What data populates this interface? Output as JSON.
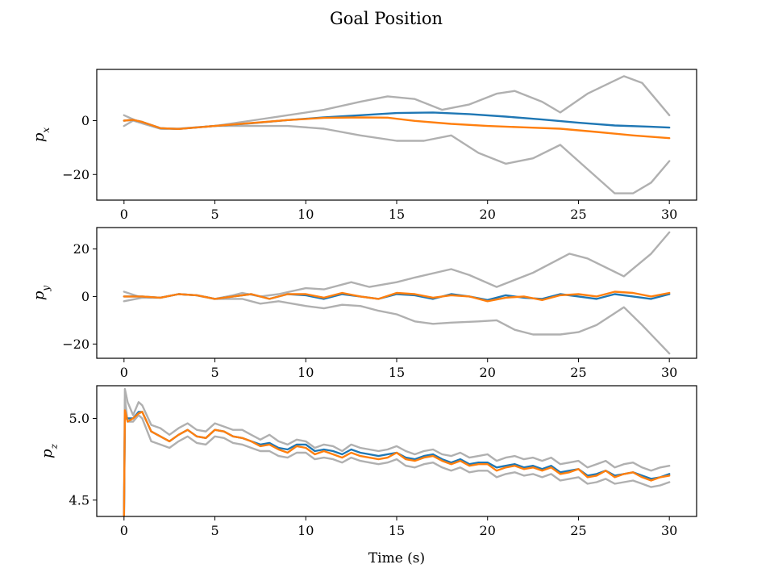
{
  "title": "Goal Position",
  "xlabel": "Time (s)",
  "colors": {
    "mean": "#1f77b4",
    "estimate": "#ff7f0e",
    "bounds": "#b0b0b0",
    "overlap": "#6b3a10"
  },
  "chart_data": [
    {
      "type": "line",
      "ylabel_main": "p",
      "ylabel_sub": "x",
      "xlim": [
        -1.5,
        31.5
      ],
      "ylim": [
        -29.5,
        19
      ],
      "xticks": [
        0,
        5,
        10,
        15,
        20,
        25,
        30
      ],
      "yticks": [
        0,
        -20
      ],
      "ytick_labels": [
        "0",
        "−20"
      ],
      "series": [
        {
          "role": "upper",
          "color": "#b0b0b0",
          "x": [
            0,
            0.5,
            1,
            2,
            3,
            5,
            7,
            9,
            11,
            13,
            14.5,
            16,
            17.5,
            19,
            20.5,
            21.5,
            23,
            24,
            25.5,
            27.5,
            28.5,
            30
          ],
          "y": [
            2,
            0.5,
            -1,
            -3,
            -3,
            -2,
            0,
            2,
            4,
            7,
            9,
            8,
            4,
            6,
            10,
            11,
            7,
            3,
            10,
            16.5,
            14,
            2
          ]
        },
        {
          "role": "lower",
          "color": "#b0b0b0",
          "x": [
            0,
            0.5,
            1,
            2,
            3,
            5,
            7,
            9,
            11,
            13,
            15,
            16.5,
            18,
            19.5,
            21,
            22.5,
            24,
            25.5,
            27,
            28,
            29,
            30
          ],
          "y": [
            -2,
            0,
            -1,
            -3,
            -3,
            -2,
            -2,
            -2,
            -3,
            -5.5,
            -7.5,
            -7.5,
            -5.5,
            -12,
            -16,
            -14,
            -9,
            -18,
            -27,
            -27,
            -23,
            -15
          ]
        },
        {
          "role": "mean",
          "color": "#1f77b4",
          "x": [
            0,
            0.5,
            1,
            2,
            3,
            5,
            7,
            9,
            11,
            13,
            15,
            17,
            19,
            21,
            23,
            25,
            27,
            29,
            30
          ],
          "y": [
            0,
            0.3,
            -0.5,
            -2.8,
            -3.1,
            -2,
            -1,
            0.2,
            1.2,
            2,
            2.8,
            3,
            2.4,
            1.5,
            0.4,
            -0.8,
            -1.8,
            -2.3,
            -2.6
          ]
        },
        {
          "role": "estimate",
          "color": "#ff7f0e",
          "x": [
            0,
            0.5,
            1,
            2,
            3,
            5,
            7,
            9,
            11,
            13,
            14.5,
            16,
            18,
            20,
            22,
            24,
            26,
            28,
            30
          ],
          "y": [
            0,
            0.3,
            -0.5,
            -2.8,
            -3.1,
            -2,
            -0.9,
            0.2,
            1,
            1.2,
            1.1,
            -0.1,
            -1.2,
            -2,
            -2.5,
            -3,
            -4.2,
            -5.5,
            -6.5
          ]
        }
      ]
    },
    {
      "type": "line",
      "ylabel_main": "p",
      "ylabel_sub": "y",
      "xlim": [
        -1.5,
        31.5
      ],
      "ylim": [
        -26,
        29
      ],
      "xticks": [
        0,
        5,
        10,
        15,
        20,
        25,
        30
      ],
      "yticks": [
        20,
        0,
        -20
      ],
      "ytick_labels": [
        "20",
        "0",
        "−20"
      ],
      "series": [
        {
          "role": "upper",
          "color": "#b0b0b0",
          "x": [
            0,
            1,
            2,
            3,
            4,
            5,
            6,
            6.5,
            7.5,
            8.5,
            10,
            11,
            12.5,
            13.5,
            15,
            16,
            18,
            19,
            20.5,
            22.5,
            24.5,
            25.5,
            27.5,
            29,
            30
          ],
          "y": [
            2,
            -0.5,
            -0.5,
            1,
            0.5,
            -1,
            0.5,
            1.5,
            0,
            1,
            3.5,
            3,
            6,
            4,
            6,
            8,
            11.5,
            9,
            4,
            10,
            18,
            16,
            8.5,
            18,
            27
          ]
        },
        {
          "role": "lower",
          "color": "#b0b0b0",
          "x": [
            0,
            1,
            2,
            3,
            4,
            5,
            6.5,
            7.5,
            8.5,
            10,
            11,
            12,
            13,
            14,
            15,
            16,
            17,
            18,
            19.5,
            20.5,
            21.5,
            22.5,
            24,
            25,
            26,
            27.5,
            28.5,
            30
          ],
          "y": [
            -2,
            -0.5,
            -0.5,
            1,
            0.5,
            -1,
            -1,
            -3,
            -2,
            -4,
            -5,
            -3.5,
            -4,
            -6,
            -7.5,
            -10.5,
            -11.5,
            -11,
            -10.5,
            -10,
            -14,
            -16,
            -16,
            -15,
            -12,
            -4.5,
            -12,
            -24
          ]
        },
        {
          "role": "mean",
          "color": "#1f77b4",
          "x": [
            0,
            1,
            2,
            3,
            4,
            5,
            6,
            7,
            8,
            9,
            10,
            11,
            12,
            13,
            14,
            15,
            16,
            17,
            18,
            19,
            20,
            21,
            22,
            23,
            24,
            25,
            26,
            27,
            28,
            29,
            30
          ],
          "y": [
            0,
            0,
            -0.5,
            1,
            0.5,
            -1,
            0,
            1,
            -1,
            1,
            0.5,
            -1,
            1,
            0,
            -1,
            1,
            0.5,
            -1,
            1,
            0,
            -1.5,
            0.5,
            -0.5,
            -1,
            1,
            0,
            -1,
            1,
            0,
            -1,
            1
          ]
        },
        {
          "role": "estimate",
          "color": "#ff7f0e",
          "x": [
            0,
            1,
            2,
            3,
            4,
            5,
            6,
            7,
            8,
            9,
            10,
            11,
            12,
            13,
            14,
            15,
            16,
            17,
            18,
            19,
            20,
            21,
            22,
            23,
            24,
            25,
            26,
            27,
            28,
            29,
            30
          ],
          "y": [
            0,
            0,
            -0.5,
            1,
            0.5,
            -1,
            0,
            1,
            -1,
            1,
            1,
            -0.5,
            1.5,
            0,
            -1,
            1.5,
            1,
            -0.5,
            0.5,
            0,
            -2,
            -0.5,
            0,
            -1.5,
            0.5,
            1,
            0,
            2,
            1.5,
            0,
            1.5
          ]
        }
      ]
    },
    {
      "type": "line",
      "ylabel_main": "p",
      "ylabel_sub": "z",
      "xlim": [
        -1.5,
        31.5
      ],
      "ylim": [
        4.4,
        5.2
      ],
      "xticks": [
        0,
        5,
        10,
        15,
        20,
        25,
        30
      ],
      "xtick_labels": [
        "0",
        "5",
        "10",
        "15",
        "20",
        "25",
        "30"
      ],
      "yticks": [
        5.0,
        4.5
      ],
      "ytick_labels": [
        "5.0",
        "4.5"
      ],
      "series": [
        {
          "role": "upper",
          "color": "#b0b0b0",
          "x": [
            0,
            0.05,
            0.2,
            0.5,
            0.8,
            1,
            1.5,
            2,
            2.5,
            3,
            3.5,
            4,
            4.5,
            5,
            5.5,
            6,
            6.5,
            7,
            7.5,
            8,
            8.5,
            9,
            9.5,
            10,
            10.5,
            11,
            11.5,
            12,
            12.5,
            13,
            13.5,
            14,
            14.5,
            15,
            15.5,
            16,
            16.5,
            17,
            17.5,
            18,
            18.5,
            19,
            19.5,
            20,
            20.5,
            21,
            21.5,
            22,
            22.5,
            23,
            23.5,
            24,
            24.5,
            25,
            25.5,
            26,
            26.5,
            27,
            27.5,
            28,
            28.5,
            29,
            29.5,
            30
          ],
          "y": [
            4.45,
            5.18,
            5.1,
            5.02,
            5.1,
            5.08,
            4.96,
            4.94,
            4.9,
            4.94,
            4.97,
            4.93,
            4.92,
            4.97,
            4.95,
            4.93,
            4.93,
            4.9,
            4.87,
            4.9,
            4.86,
            4.84,
            4.87,
            4.86,
            4.82,
            4.84,
            4.83,
            4.8,
            4.84,
            4.82,
            4.81,
            4.8,
            4.81,
            4.83,
            4.8,
            4.78,
            4.8,
            4.81,
            4.78,
            4.77,
            4.79,
            4.76,
            4.77,
            4.78,
            4.74,
            4.76,
            4.77,
            4.75,
            4.76,
            4.74,
            4.76,
            4.72,
            4.73,
            4.74,
            4.7,
            4.72,
            4.74,
            4.7,
            4.72,
            4.73,
            4.7,
            4.68,
            4.7,
            4.71
          ]
        },
        {
          "role": "lower",
          "color": "#b0b0b0",
          "x": [
            0,
            0.05,
            0.2,
            0.5,
            0.8,
            1,
            1.5,
            2,
            2.5,
            3,
            3.5,
            4,
            4.5,
            5,
            5.5,
            6,
            6.5,
            7,
            7.5,
            8,
            8.5,
            9,
            9.5,
            10,
            10.5,
            11,
            11.5,
            12,
            12.5,
            13,
            13.5,
            14,
            14.5,
            15,
            15.5,
            16,
            16.5,
            17,
            17.5,
            18,
            18.5,
            19,
            19.5,
            20,
            20.5,
            21,
            21.5,
            22,
            22.5,
            23,
            23.5,
            24,
            24.5,
            25,
            25.5,
            26,
            26.5,
            27,
            27.5,
            28,
            28.5,
            29,
            29.5,
            30
          ],
          "y": [
            4.4,
            5.12,
            4.98,
            4.98,
            5.02,
            5.0,
            4.86,
            4.84,
            4.82,
            4.86,
            4.89,
            4.85,
            4.84,
            4.89,
            4.88,
            4.85,
            4.84,
            4.82,
            4.8,
            4.8,
            4.77,
            4.76,
            4.79,
            4.79,
            4.75,
            4.76,
            4.75,
            4.73,
            4.76,
            4.74,
            4.73,
            4.72,
            4.73,
            4.75,
            4.71,
            4.7,
            4.72,
            4.73,
            4.7,
            4.68,
            4.7,
            4.67,
            4.68,
            4.68,
            4.64,
            4.66,
            4.67,
            4.65,
            4.66,
            4.64,
            4.66,
            4.62,
            4.63,
            4.64,
            4.6,
            4.61,
            4.63,
            4.6,
            4.61,
            4.62,
            4.6,
            4.58,
            4.59,
            4.61
          ]
        },
        {
          "role": "mean",
          "color": "#1f77b4",
          "x": [
            0,
            0.05,
            0.2,
            0.5,
            0.8,
            1,
            1.5,
            2,
            2.5,
            3,
            3.5,
            4,
            4.5,
            5,
            5.5,
            6,
            6.5,
            7,
            7.5,
            8,
            8.5,
            9,
            9.5,
            10,
            10.5,
            11,
            11.5,
            12,
            12.5,
            13,
            13.5,
            14,
            14.5,
            15,
            15.5,
            16,
            16.5,
            17,
            17.5,
            18,
            18.5,
            19,
            19.5,
            20,
            20.5,
            21,
            21.5,
            22,
            22.5,
            23,
            23.5,
            24,
            24.5,
            25,
            25.5,
            26,
            26.5,
            27,
            27.5,
            28,
            28.5,
            29,
            29.5,
            30
          ],
          "y": [
            4.4,
            5.0,
            5.0,
            5.0,
            5.04,
            5.04,
            4.92,
            4.89,
            4.86,
            4.9,
            4.93,
            4.89,
            4.88,
            4.93,
            4.92,
            4.89,
            4.88,
            4.86,
            4.84,
            4.85,
            4.82,
            4.81,
            4.84,
            4.84,
            4.8,
            4.81,
            4.8,
            4.78,
            4.81,
            4.79,
            4.78,
            4.77,
            4.78,
            4.79,
            4.76,
            4.75,
            4.77,
            4.78,
            4.75,
            4.73,
            4.75,
            4.72,
            4.73,
            4.73,
            4.7,
            4.71,
            4.72,
            4.7,
            4.71,
            4.69,
            4.71,
            4.67,
            4.68,
            4.69,
            4.65,
            4.66,
            4.68,
            4.65,
            4.66,
            4.67,
            4.65,
            4.63,
            4.64,
            4.66
          ]
        },
        {
          "role": "estimate",
          "color": "#ff7f0e",
          "x": [
            0,
            0.05,
            0.2,
            0.5,
            0.8,
            1,
            1.5,
            2,
            2.5,
            3,
            3.5,
            4,
            4.5,
            5,
            5.5,
            6,
            6.5,
            7,
            7.5,
            8,
            8.5,
            9,
            9.5,
            10,
            10.5,
            11,
            11.5,
            12,
            12.5,
            13,
            13.5,
            14,
            14.5,
            15,
            15.5,
            16,
            16.5,
            17,
            17.5,
            18,
            18.5,
            19,
            19.5,
            20,
            20.5,
            21,
            21.5,
            22,
            22.5,
            23,
            23.5,
            24,
            24.5,
            25,
            25.5,
            26,
            26.5,
            27,
            27.5,
            28,
            28.5,
            29,
            29.5,
            30
          ],
          "y": [
            4.4,
            5.05,
            4.98,
            5.0,
            5.03,
            5.04,
            4.92,
            4.89,
            4.86,
            4.9,
            4.93,
            4.89,
            4.88,
            4.93,
            4.92,
            4.89,
            4.88,
            4.86,
            4.83,
            4.84,
            4.81,
            4.79,
            4.83,
            4.82,
            4.78,
            4.8,
            4.78,
            4.76,
            4.79,
            4.77,
            4.76,
            4.75,
            4.76,
            4.79,
            4.75,
            4.74,
            4.76,
            4.77,
            4.74,
            4.72,
            4.74,
            4.71,
            4.72,
            4.72,
            4.68,
            4.7,
            4.71,
            4.69,
            4.7,
            4.68,
            4.7,
            4.66,
            4.67,
            4.69,
            4.64,
            4.65,
            4.68,
            4.64,
            4.66,
            4.67,
            4.64,
            4.62,
            4.64,
            4.65
          ]
        }
      ]
    }
  ]
}
